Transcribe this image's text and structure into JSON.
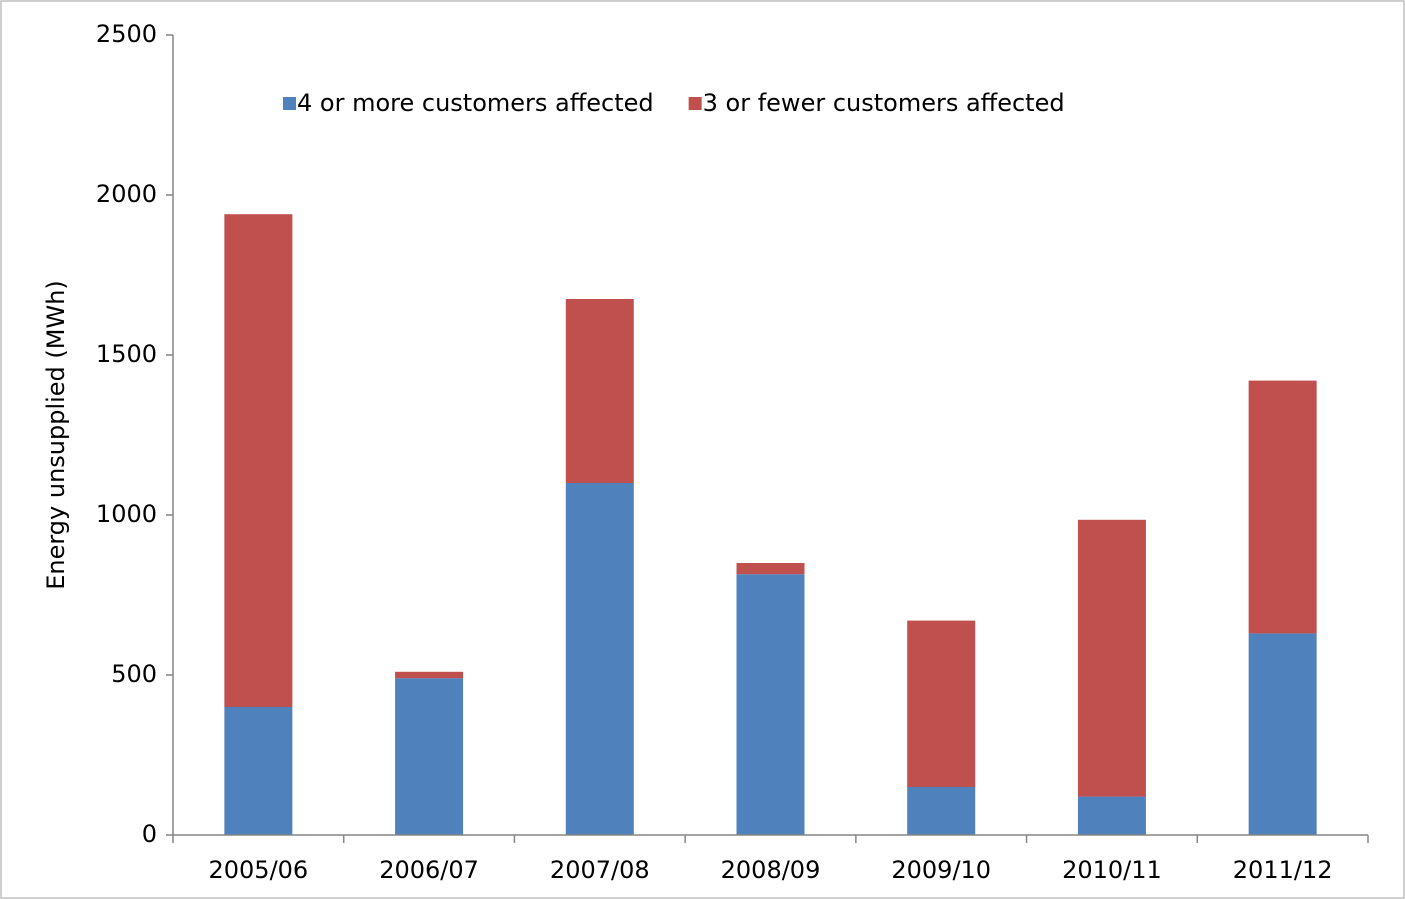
{
  "chart_data": {
    "type": "stacked_bar",
    "y_label": "Energy unsupplied (MWh)",
    "categories": [
      "2005/06",
      "2006/07",
      "2007/08",
      "2008/09",
      "2009/10",
      "2010/11",
      "2011/12"
    ],
    "series": [
      {
        "name": "4 or more customers affected",
        "color": "#4f81bd",
        "values": [
          400,
          490,
          1100,
          815,
          150,
          120,
          630
        ]
      },
      {
        "name": "3 or fewer customers affected",
        "color": "#c0504d",
        "values": [
          1540,
          20,
          575,
          35,
          520,
          865,
          790
        ]
      }
    ],
    "ylim": [
      0,
      2500
    ],
    "yticks": [
      0,
      500,
      1000,
      1500,
      2000,
      2500
    ],
    "grid": false,
    "legend": "top"
  }
}
